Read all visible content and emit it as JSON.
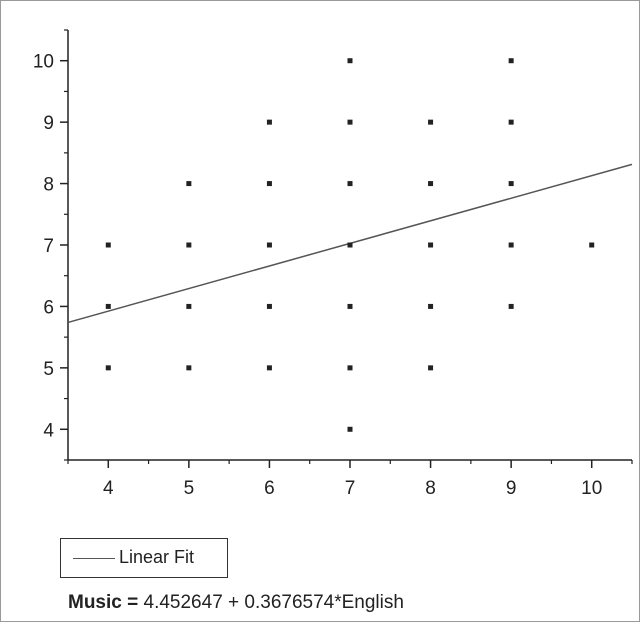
{
  "chart_data": {
    "type": "scatter",
    "title": "",
    "xlabel": "",
    "ylabel": "",
    "xlim": [
      3.5,
      10.5
    ],
    "ylim": [
      3.5,
      10.5
    ],
    "x_ticks": [
      4,
      5,
      6,
      7,
      8,
      9,
      10
    ],
    "y_ticks": [
      4,
      5,
      6,
      7,
      8,
      9,
      10
    ],
    "points": [
      {
        "x": 4,
        "y": 5
      },
      {
        "x": 4,
        "y": 6
      },
      {
        "x": 4,
        "y": 7
      },
      {
        "x": 5,
        "y": 5
      },
      {
        "x": 5,
        "y": 6
      },
      {
        "x": 5,
        "y": 7
      },
      {
        "x": 5,
        "y": 8
      },
      {
        "x": 6,
        "y": 5
      },
      {
        "x": 6,
        "y": 6
      },
      {
        "x": 6,
        "y": 7
      },
      {
        "x": 6,
        "y": 8
      },
      {
        "x": 6,
        "y": 9
      },
      {
        "x": 7,
        "y": 4
      },
      {
        "x": 7,
        "y": 5
      },
      {
        "x": 7,
        "y": 6
      },
      {
        "x": 7,
        "y": 7
      },
      {
        "x": 7,
        "y": 8
      },
      {
        "x": 7,
        "y": 9
      },
      {
        "x": 7,
        "y": 10
      },
      {
        "x": 8,
        "y": 5
      },
      {
        "x": 8,
        "y": 6
      },
      {
        "x": 8,
        "y": 7
      },
      {
        "x": 8,
        "y": 8
      },
      {
        "x": 8,
        "y": 9
      },
      {
        "x": 9,
        "y": 6
      },
      {
        "x": 9,
        "y": 7
      },
      {
        "x": 9,
        "y": 8
      },
      {
        "x": 9,
        "y": 9
      },
      {
        "x": 9,
        "y": 10
      },
      {
        "x": 10,
        "y": 7
      }
    ],
    "fit": {
      "intercept": 4.452647,
      "slope": 0.3676574
    },
    "legend": {
      "label": "Linear Fit"
    },
    "equation": {
      "lhs": "Music =",
      "rhs": "4.452647 + 0.3676574*English"
    },
    "colors": {
      "points": "#222222",
      "fit_line": "#555555",
      "axis": "#222222"
    }
  }
}
